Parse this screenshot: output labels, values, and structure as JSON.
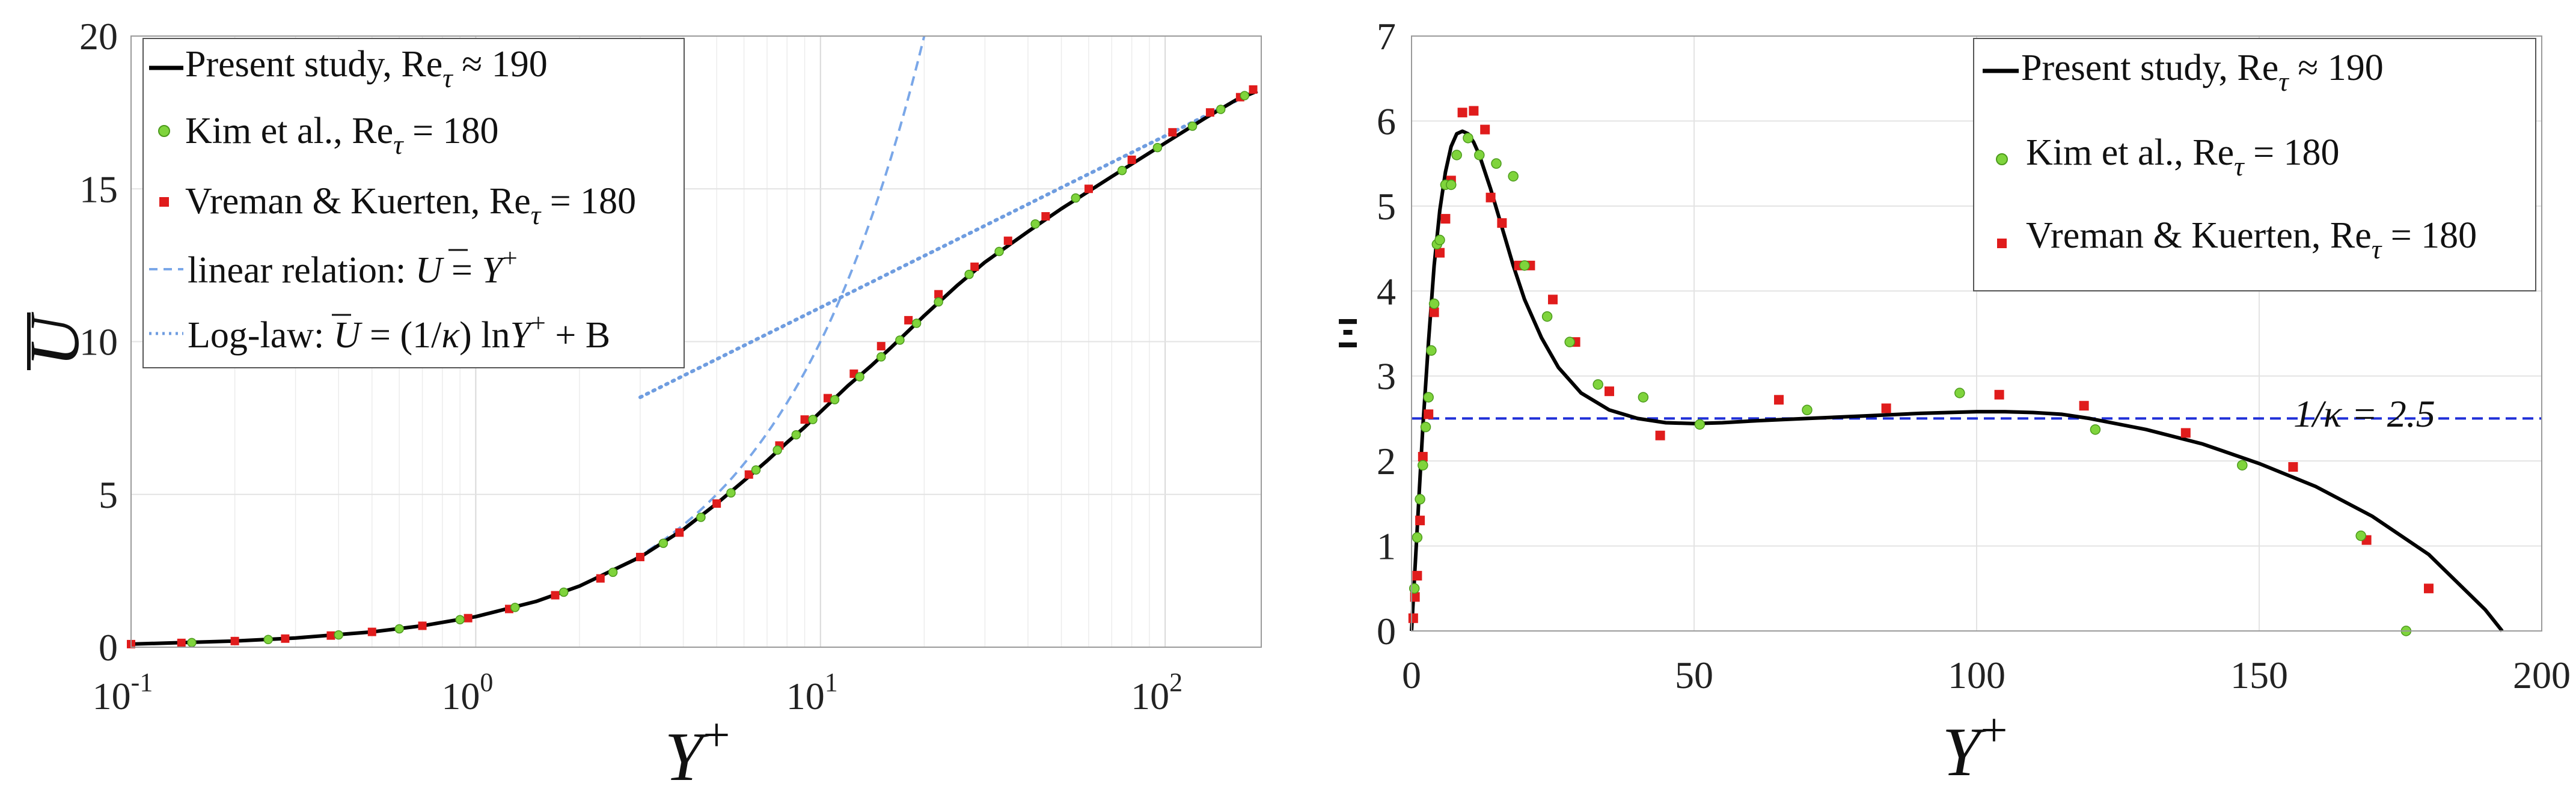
{
  "colors": {
    "present": "#000000",
    "kim": "#7fd43c",
    "vreman": "#e01c1c",
    "linear": "#7aa7e8",
    "loglaw": "#6f9de0",
    "kappa_line": "#1f2fd8",
    "grid": "#e3e3e3"
  },
  "chart_data": [
    {
      "type": "line",
      "panel": "left",
      "xlabel": "Y",
      "xlabel_sup": "+",
      "ylabel": "U",
      "x_scale": "log",
      "xlim": [
        0.1,
        190
      ],
      "ylim": [
        0,
        20
      ],
      "x_ticks": [
        {
          "value": 0.1,
          "base": "10",
          "exp": "-1"
        },
        {
          "value": 1,
          "base": "10",
          "exp": "0"
        },
        {
          "value": 10,
          "base": "10",
          "exp": "1"
        },
        {
          "value": 100,
          "base": "10",
          "exp": "2"
        }
      ],
      "y_ticks": [
        "0",
        "5",
        "10",
        "15",
        "20"
      ],
      "grid": true,
      "legend_position": "top-left",
      "legend": [
        {
          "label": "Present study, Re",
          "sub": "τ",
          "tail": " ≈ 190",
          "marker": "line"
        },
        {
          "label": "Kim et al., Re",
          "sub": "τ",
          "tail": " = 180",
          "marker": "circle"
        },
        {
          "label": "Vreman & Kuerten, Re",
          "sub": "τ",
          "tail": " = 180",
          "marker": "square"
        },
        {
          "label": "linear relation: ",
          "formula": "U = Y+",
          "marker": "dashed"
        },
        {
          "label": "Log-law: ",
          "formula": "U = (1/κ) lnY+ + B",
          "marker": "dotted"
        }
      ],
      "series": [
        {
          "name": "Present study, Reτ ≈ 190",
          "x": [
            0.1,
            0.2,
            0.3,
            0.5,
            0.7,
            1,
            1.5,
            2,
            3,
            4,
            5,
            6,
            7,
            8,
            9,
            10,
            12,
            14,
            16,
            18,
            20,
            25,
            30,
            40,
            50,
            70,
            100,
            130,
            160,
            185
          ],
          "y": [
            0.1,
            0.2,
            0.3,
            0.5,
            0.7,
            1.0,
            1.5,
            2.0,
            2.95,
            3.85,
            4.7,
            5.45,
            6.1,
            6.7,
            7.2,
            7.7,
            8.55,
            9.2,
            9.8,
            10.35,
            10.85,
            11.85,
            12.6,
            13.6,
            14.35,
            15.4,
            16.5,
            17.3,
            17.9,
            18.2
          ]
        },
        {
          "name": "Kim et al., Reτ = 180",
          "x": [
            0.15,
            0.25,
            0.4,
            0.6,
            0.9,
            1.3,
            1.8,
            2.5,
            3.5,
            4.5,
            5.5,
            6.5,
            7.5,
            8.5,
            9.5,
            11,
            13,
            15,
            17,
            19,
            22,
            27,
            33,
            42,
            55,
            75,
            95,
            120,
            145,
            170
          ],
          "y": [
            0.15,
            0.25,
            0.4,
            0.6,
            0.9,
            1.3,
            1.8,
            2.45,
            3.4,
            4.25,
            5.05,
            5.8,
            6.45,
            6.95,
            7.45,
            8.1,
            8.85,
            9.5,
            10.05,
            10.6,
            11.3,
            12.2,
            12.95,
            13.85,
            14.7,
            15.6,
            16.35,
            17.05,
            17.6,
            18.05
          ]
        },
        {
          "name": "Vreman & Kuerten, Reτ = 180",
          "x": [
            0.1,
            0.14,
            0.2,
            0.28,
            0.38,
            0.5,
            0.7,
            0.95,
            1.25,
            1.7,
            2.3,
            3,
            3.9,
            5,
            6.2,
            7.6,
            9,
            10.5,
            12.5,
            15,
            18,
            22,
            28,
            35,
            45,
            60,
            80,
            105,
            135,
            165,
            180
          ],
          "y": [
            0.1,
            0.14,
            0.2,
            0.28,
            0.38,
            0.5,
            0.7,
            0.95,
            1.25,
            1.7,
            2.25,
            2.95,
            3.75,
            4.7,
            5.65,
            6.6,
            7.45,
            8.15,
            8.95,
            9.85,
            10.7,
            11.55,
            12.45,
            13.3,
            14.1,
            15.0,
            15.95,
            16.85,
            17.5,
            18.0,
            18.25
          ]
        },
        {
          "name": "linear relation",
          "x": [
            0.1,
            20
          ],
          "y": [
            0.1,
            20
          ]
        },
        {
          "name": "Log-law",
          "x": [
            3,
            185
          ],
          "y": [
            8.22,
            18.29
          ]
        }
      ]
    },
    {
      "type": "line",
      "panel": "right",
      "xlabel": "Y",
      "xlabel_sup": "+",
      "ylabel": "Ξ",
      "xlim": [
        0,
        200
      ],
      "ylim": [
        0,
        7
      ],
      "x_ticks": [
        "0",
        "50",
        "100",
        "150",
        "200"
      ],
      "y_ticks": [
        "0",
        "1",
        "2",
        "3",
        "4",
        "5",
        "6",
        "7"
      ],
      "grid": true,
      "legend_position": "top-right",
      "annotation": "1/κ = 2.5",
      "reference_line": 2.5,
      "legend": [
        {
          "label": "Present study, Re",
          "sub": "τ",
          "tail": " ≈ 190",
          "marker": "line"
        },
        {
          "label": "Kim et al., Re",
          "sub": "τ",
          "tail": " = 180",
          "marker": "circle"
        },
        {
          "label": "Vreman & Kuerten, Re",
          "sub": "τ",
          "tail": " = 180",
          "marker": "square"
        }
      ],
      "series": [
        {
          "name": "Present study, Reτ ≈ 190",
          "x": [
            0,
            1,
            2,
            3,
            4,
            5,
            6,
            7,
            8,
            9,
            10,
            11,
            12,
            14,
            16,
            18,
            20,
            23,
            26,
            30,
            35,
            40,
            45,
            50,
            55,
            60,
            70,
            80,
            90,
            100,
            105,
            110,
            115,
            120,
            130,
            140,
            150,
            160,
            170,
            180,
            190,
            193
          ],
          "y": [
            0,
            1.2,
            2.4,
            3.4,
            4.3,
            4.95,
            5.4,
            5.7,
            5.85,
            5.88,
            5.85,
            5.75,
            5.6,
            5.2,
            4.75,
            4.3,
            3.9,
            3.45,
            3.1,
            2.8,
            2.6,
            2.5,
            2.45,
            2.44,
            2.45,
            2.47,
            2.5,
            2.53,
            2.56,
            2.58,
            2.58,
            2.57,
            2.55,
            2.5,
            2.37,
            2.2,
            1.97,
            1.7,
            1.35,
            0.9,
            0.25,
            0
          ]
        },
        {
          "name": "Kim et al., Reτ = 180",
          "x": [
            0.5,
            1,
            1.5,
            2,
            2.5,
            3,
            3.5,
            4,
            4.5,
            5,
            6,
            7,
            8,
            10,
            12,
            15,
            18,
            20,
            24,
            28,
            33,
            41,
            51,
            70,
            97,
            121,
            147,
            168,
            176
          ],
          "y": [
            0.5,
            1.1,
            1.55,
            1.95,
            2.4,
            2.75,
            3.3,
            3.85,
            4.55,
            4.6,
            5.25,
            5.25,
            5.6,
            5.8,
            5.6,
            5.5,
            5.35,
            4.3,
            3.7,
            3.4,
            2.9,
            2.75,
            2.43,
            2.6,
            2.8,
            2.37,
            1.95,
            1.12,
            0
          ]
        },
        {
          "name": "Vreman & Kuerten, Reτ = 180",
          "x": [
            0.3,
            0.6,
            1,
            1.5,
            2,
            3,
            4,
            5,
            6,
            7,
            9,
            11,
            13,
            14,
            16,
            19,
            21,
            25,
            29,
            35,
            44,
            65,
            84,
            104,
            119,
            137,
            156,
            169,
            180
          ],
          "y": [
            0.15,
            0.4,
            0.65,
            1.3,
            2.05,
            2.55,
            3.75,
            4.45,
            4.85,
            5.3,
            6.1,
            6.12,
            5.9,
            5.1,
            4.8,
            4.3,
            4.3,
            3.9,
            3.4,
            2.82,
            2.3,
            2.72,
            2.62,
            2.78,
            2.65,
            2.33,
            1.93,
            1.07,
            0.5
          ]
        },
        {
          "name": "1/κ",
          "x": [
            0,
            200
          ],
          "y": [
            2.5,
            2.5
          ]
        }
      ]
    }
  ]
}
